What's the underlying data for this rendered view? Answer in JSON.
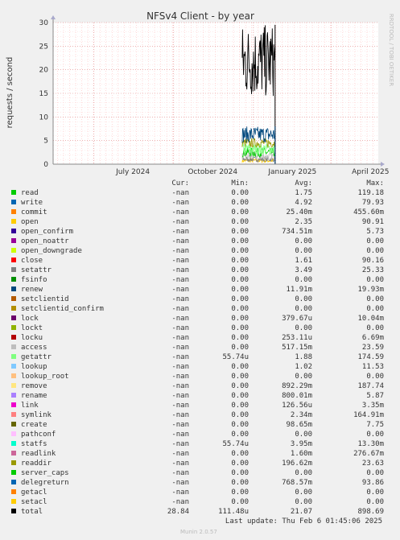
{
  "chart_data": {
    "type": "line",
    "title": "NFSv4 Client - by year",
    "ylabel": "requests / second",
    "side_label": "RRDTOOL / TOBI OETIKER",
    "ylim": [
      0,
      30
    ],
    "y_ticks": [
      0,
      5,
      10,
      15,
      20,
      25,
      30
    ],
    "x_ticks": [
      {
        "label": "July 2024",
        "day": 0
      },
      {
        "label": "October 2024",
        "day": 92
      },
      {
        "label": "January 2025",
        "day": 184
      },
      {
        "label": "April 2025",
        "day": 274
      }
    ],
    "x_range_days": [
      -47,
      328
    ],
    "data_range_days": [
      171,
      209
    ],
    "series": [
      {
        "key": "total",
        "min": 14,
        "max": 29.5
      },
      {
        "key": "renew",
        "min": 4.5,
        "max": 8
      },
      {
        "key": "readdir",
        "min": 3.5,
        "max": 5.5
      },
      {
        "key": "getattr",
        "min": 2,
        "max": 4.5
      },
      {
        "key": "read",
        "min": 1.5,
        "max": 3.5
      },
      {
        "key": "access",
        "min": 0.8,
        "max": 2.5
      },
      {
        "key": "setattr",
        "min": 0.5,
        "max": 1.6
      },
      {
        "key": "open",
        "min": 0.3,
        "max": 1.2
      }
    ]
  },
  "legend_header": {
    "cur": "Cur:",
    "min": "Min:",
    "avg": "Avg:",
    "max": "Max:"
  },
  "legend": [
    {
      "name": "read",
      "color": "#00cc00",
      "cur": "-nan",
      "min": "0.00",
      "avg": "1.75",
      "max": "119.18"
    },
    {
      "name": "write",
      "color": "#0066b3",
      "cur": "-nan",
      "min": "0.00",
      "avg": "4.92",
      "max": "79.93"
    },
    {
      "name": "commit",
      "color": "#ff8000",
      "cur": "-nan",
      "min": "0.00",
      "avg": "25.40m",
      "max": "455.60m"
    },
    {
      "name": "open",
      "color": "#ffcc00",
      "cur": "-nan",
      "min": "0.00",
      "avg": "2.35",
      "max": "90.91"
    },
    {
      "name": "open_confirm",
      "color": "#330099",
      "cur": "-nan",
      "min": "0.00",
      "avg": "734.51m",
      "max": "5.73"
    },
    {
      "name": "open_noattr",
      "color": "#990099",
      "cur": "-nan",
      "min": "0.00",
      "avg": "0.00",
      "max": "0.00"
    },
    {
      "name": "open_downgrade",
      "color": "#ccff00",
      "cur": "-nan",
      "min": "0.00",
      "avg": "0.00",
      "max": "0.00"
    },
    {
      "name": "close",
      "color": "#ff0000",
      "cur": "-nan",
      "min": "0.00",
      "avg": "1.61",
      "max": "90.16"
    },
    {
      "name": "setattr",
      "color": "#808080",
      "cur": "-nan",
      "min": "0.00",
      "avg": "3.49",
      "max": "25.33"
    },
    {
      "name": "fsinfo",
      "color": "#008f00",
      "cur": "-nan",
      "min": "0.00",
      "avg": "0.00",
      "max": "0.00"
    },
    {
      "name": "renew",
      "color": "#00487d",
      "cur": "-nan",
      "min": "0.00",
      "avg": "11.91m",
      "max": "19.93m"
    },
    {
      "name": "setclientid",
      "color": "#b35a00",
      "cur": "-nan",
      "min": "0.00",
      "avg": "0.00",
      "max": "0.00"
    },
    {
      "name": "setclientid_confirm",
      "color": "#b38f00",
      "cur": "-nan",
      "min": "0.00",
      "avg": "0.00",
      "max": "0.00"
    },
    {
      "name": "lock",
      "color": "#6b006b",
      "cur": "-nan",
      "min": "0.00",
      "avg": "379.67u",
      "max": "10.04m"
    },
    {
      "name": "lockt",
      "color": "#8fb300",
      "cur": "-nan",
      "min": "0.00",
      "avg": "0.00",
      "max": "0.00"
    },
    {
      "name": "locku",
      "color": "#b30000",
      "cur": "-nan",
      "min": "0.00",
      "avg": "253.11u",
      "max": "6.69m"
    },
    {
      "name": "access",
      "color": "#bebebe",
      "cur": "-nan",
      "min": "0.00",
      "avg": "517.15m",
      "max": "23.59"
    },
    {
      "name": "getattr",
      "color": "#80ff80",
      "cur": "-nan",
      "min": "55.74u",
      "avg": "1.88",
      "max": "174.59"
    },
    {
      "name": "lookup",
      "color": "#80c9ff",
      "cur": "-nan",
      "min": "0.00",
      "avg": "1.02",
      "max": "11.53"
    },
    {
      "name": "lookup_root",
      "color": "#ffc080",
      "cur": "-nan",
      "min": "0.00",
      "avg": "0.00",
      "max": "0.00"
    },
    {
      "name": "remove",
      "color": "#ffe680",
      "cur": "-nan",
      "min": "0.00",
      "avg": "892.29m",
      "max": "187.74"
    },
    {
      "name": "rename",
      "color": "#aa80ff",
      "cur": "-nan",
      "min": "0.00",
      "avg": "800.01m",
      "max": "5.87"
    },
    {
      "name": "link",
      "color": "#ee00cc",
      "cur": "-nan",
      "min": "0.00",
      "avg": "126.56u",
      "max": "3.35m"
    },
    {
      "name": "symlink",
      "color": "#ff8080",
      "cur": "-nan",
      "min": "0.00",
      "avg": "2.34m",
      "max": "164.91m"
    },
    {
      "name": "create",
      "color": "#666600",
      "cur": "-nan",
      "min": "0.00",
      "avg": "98.65m",
      "max": "7.75"
    },
    {
      "name": "pathconf",
      "color": "#ffbfff",
      "cur": "-nan",
      "min": "0.00",
      "avg": "0.00",
      "max": "0.00"
    },
    {
      "name": "statfs",
      "color": "#00ffcc",
      "cur": "-nan",
      "min": "55.74u",
      "avg": "3.95m",
      "max": "13.30m"
    },
    {
      "name": "readlink",
      "color": "#cc6699",
      "cur": "-nan",
      "min": "0.00",
      "avg": "1.60m",
      "max": "276.67m"
    },
    {
      "name": "readdir",
      "color": "#999900",
      "cur": "-nan",
      "min": "0.00",
      "avg": "196.62m",
      "max": "23.63"
    },
    {
      "name": "server_caps",
      "color": "#00cc00",
      "cur": "-nan",
      "min": "0.00",
      "avg": "0.00",
      "max": "0.00"
    },
    {
      "name": "delegreturn",
      "color": "#0066b3",
      "cur": "-nan",
      "min": "0.00",
      "avg": "768.57m",
      "max": "93.86"
    },
    {
      "name": "getacl",
      "color": "#ff8000",
      "cur": "-nan",
      "min": "0.00",
      "avg": "0.00",
      "max": "0.00"
    },
    {
      "name": "setacl",
      "color": "#ffcc00",
      "cur": "-nan",
      "min": "0.00",
      "avg": "0.00",
      "max": "0.00"
    },
    {
      "name": "total",
      "color": "#000000",
      "cur": "28.84",
      "min": "111.48u",
      "avg": "21.07",
      "max": "898.69"
    }
  ],
  "last_update": "Last update: Thu Feb  6 01:45:06 2025",
  "munin_version": "Munin 2.0.57"
}
